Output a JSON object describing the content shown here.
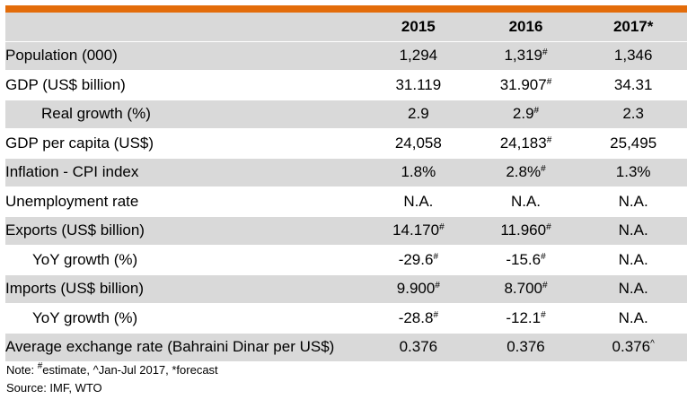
{
  "header": {
    "columns": [
      "",
      "2015",
      "2016",
      "2017*"
    ]
  },
  "rows": [
    {
      "label": "Population (000)",
      "indent": 0,
      "shade": true,
      "cells": [
        {
          "v": "1,294",
          "s": ""
        },
        {
          "v": "1,319",
          "s": "#"
        },
        {
          "v": "1,346",
          "s": ""
        }
      ]
    },
    {
      "label": "GDP (US$ billion)",
      "indent": 0,
      "shade": false,
      "cells": [
        {
          "v": "31.119",
          "s": ""
        },
        {
          "v": "31.907",
          "s": "#"
        },
        {
          "v": "34.31",
          "s": ""
        }
      ]
    },
    {
      "label": "Real growth (%)",
      "indent": 2,
      "shade": true,
      "cells": [
        {
          "v": "2.9",
          "s": ""
        },
        {
          "v": "2.9",
          "s": "#"
        },
        {
          "v": "2.3",
          "s": ""
        }
      ]
    },
    {
      "label": "GDP per capita (US$)",
      "indent": 0,
      "shade": false,
      "cells": [
        {
          "v": "24,058",
          "s": ""
        },
        {
          "v": "24,183",
          "s": "#"
        },
        {
          "v": "25,495",
          "s": ""
        }
      ]
    },
    {
      "label": "Inflation - CPI index",
      "indent": 0,
      "shade": true,
      "cells": [
        {
          "v": "1.8%",
          "s": ""
        },
        {
          "v": "2.8%",
          "s": "#"
        },
        {
          "v": "1.3%",
          "s": ""
        }
      ]
    },
    {
      "label": "Unemployment rate",
      "indent": 0,
      "shade": false,
      "cells": [
        {
          "v": "N.A.",
          "s": ""
        },
        {
          "v": "N.A.",
          "s": ""
        },
        {
          "v": "N.A.",
          "s": ""
        }
      ]
    },
    {
      "label": "Exports (US$ billion)",
      "indent": 0,
      "shade": true,
      "cells": [
        {
          "v": "14.170",
          "s": "#"
        },
        {
          "v": "11.960",
          "s": "#"
        },
        {
          "v": "N.A.",
          "s": ""
        }
      ]
    },
    {
      "label": "YoY growth (%)",
      "indent": 1,
      "shade": false,
      "cells": [
        {
          "v": "-29.6",
          "s": "#"
        },
        {
          "v": "-15.6",
          "s": "#"
        },
        {
          "v": "N.A.",
          "s": ""
        }
      ]
    },
    {
      "label": "Imports (US$ billion)",
      "indent": 0,
      "shade": true,
      "cells": [
        {
          "v": "9.900",
          "s": "#"
        },
        {
          "v": "8.700",
          "s": "#"
        },
        {
          "v": "N.A.",
          "s": ""
        }
      ]
    },
    {
      "label": "YoY growth (%)",
      "indent": 1,
      "shade": false,
      "cells": [
        {
          "v": "-28.8",
          "s": "#"
        },
        {
          "v": "-12.1",
          "s": "#"
        },
        {
          "v": "N.A.",
          "s": ""
        }
      ]
    },
    {
      "label": "Average exchange rate (Bahraini Dinar per US$)",
      "indent": 0,
      "shade": true,
      "cells": [
        {
          "v": "0.376",
          "s": ""
        },
        {
          "v": "0.376",
          "s": ""
        },
        {
          "v": "0.376",
          "s": "^"
        }
      ]
    }
  ],
  "notes": {
    "note_prefix": "Note: ",
    "est_mark": "#",
    "est_text": "estimate, ",
    "rest": "^Jan-Jul 2017, *forecast",
    "source": "Source: IMF, WTO"
  },
  "colors": {
    "accent": "#e36c0a",
    "shade": "#d9d9d9"
  }
}
